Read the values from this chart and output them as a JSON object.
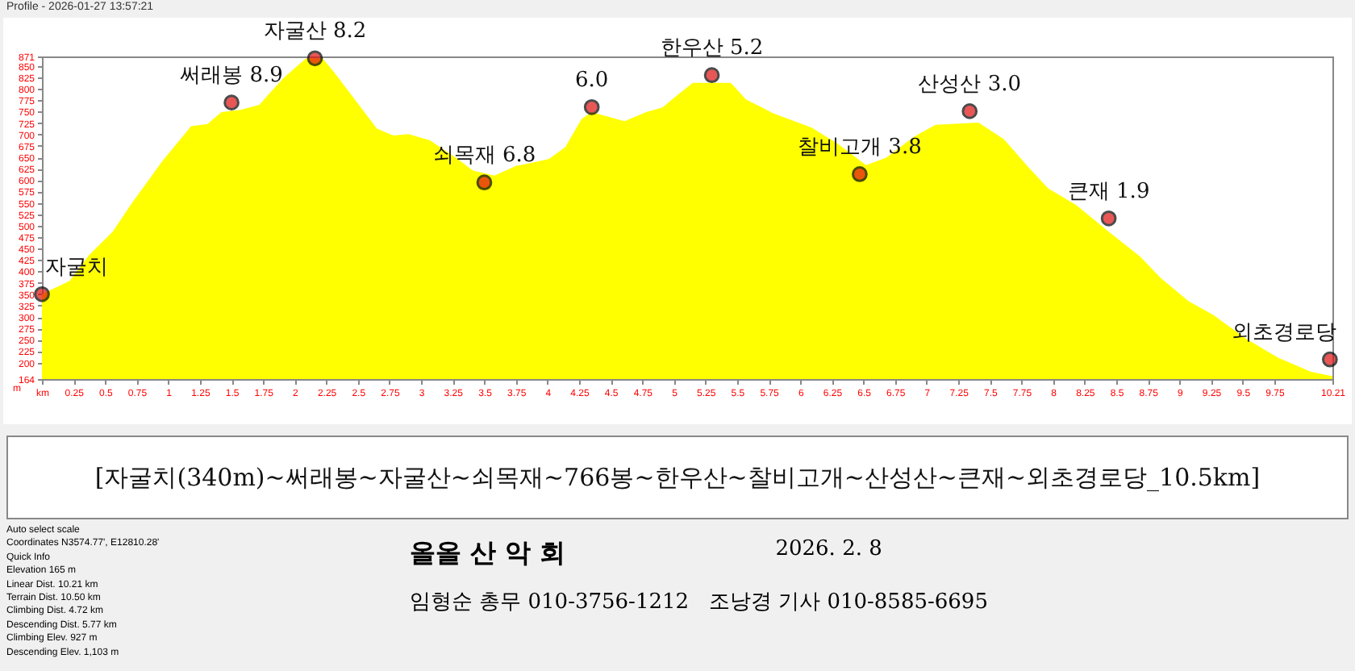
{
  "chart_data": {
    "type": "area",
    "ylabel": "m",
    "x": [
      0,
      0.22,
      0.37,
      0.56,
      0.71,
      0.95,
      1.18,
      1.31,
      1.42,
      1.57,
      1.72,
      1.8,
      1.92,
      2.09,
      2.22,
      2.31,
      2.48,
      2.65,
      2.78,
      2.9,
      3.07,
      3.29,
      3.41,
      3.58,
      3.75,
      3.84,
      4.01,
      4.14,
      4.27,
      4.35,
      4.61,
      4.78,
      4.91,
      5.03,
      5.15,
      5.45,
      5.57,
      5.79,
      6.09,
      6.3,
      6.52,
      6.68,
      6.9,
      7.07,
      7.41,
      7.61,
      7.79,
      7.96,
      8.18,
      8.43,
      8.69,
      8.85,
      9.07,
      9.27,
      9.53,
      9.78,
      10.04,
      10.21
    ],
    "series": [
      {
        "color": "#ffff00",
        "values": [
          350,
          379,
          435,
          487,
          549,
          641,
          718,
          723,
          749,
          754,
          765,
          790,
          826,
          867,
          867,
          837,
          775,
          713,
          698,
          701,
          687,
          646,
          621,
          610,
          631,
          636,
          646,
          672,
          734,
          749,
          729,
          749,
          759,
          787,
          813,
          813,
          777,
          746,
          715,
          679,
          633,
          649,
          695,
          721,
          726,
          690,
          633,
          582,
          546,
          489,
          432,
          386,
          335,
          304,
          252,
          211,
          180,
          170
        ]
      }
    ],
    "xlim": [
      0,
      10.21
    ],
    "xticks": [
      {
        "value": 0,
        "label": "km"
      },
      0.25,
      0.5,
      0.75,
      1,
      1.25,
      1.5,
      1.75,
      2,
      2.25,
      2.5,
      2.75,
      3,
      3.25,
      3.5,
      3.75,
      4,
      4.25,
      4.5,
      4.75,
      5,
      5.25,
      5.5,
      5.75,
      6,
      6.25,
      6.5,
      6.75,
      7,
      7.25,
      7.5,
      7.75,
      8,
      8.25,
      8.5,
      8.75,
      9,
      9.25,
      9.5,
      9.75,
      10.21
    ],
    "ylim": [
      164,
      871
    ],
    "yticks": [
      164,
      200,
      225,
      250,
      275,
      300,
      325,
      350,
      375,
      400,
      425,
      450,
      475,
      500,
      525,
      550,
      575,
      600,
      625,
      650,
      675,
      700,
      725,
      750,
      775,
      800,
      825,
      850,
      871
    ],
    "grid": false,
    "annotations": [
      {
        "text": "자굴치",
        "x": 0,
        "y": 350
      },
      {
        "text": "써래봉 8.9",
        "x": 1.5,
        "y": 770
      },
      {
        "text": "자굴산 8.2",
        "x": 2.16,
        "y": 867
      },
      {
        "text": "쇠목재 6.8",
        "x": 3.5,
        "y": 595
      },
      {
        "text": "6.0",
        "x": 4.35,
        "y": 760
      },
      {
        "text": "한우산 5.2",
        "x": 5.3,
        "y": 830
      },
      {
        "text": "찰비고개 3.8",
        "x": 6.47,
        "y": 613
      },
      {
        "text": "산성산 3.0",
        "x": 7.34,
        "y": 751
      },
      {
        "text": "큰재 1.9",
        "x": 8.44,
        "y": 516
      },
      {
        "text": "외초경로당",
        "x": 10.19,
        "y": 207
      },
      "Profile - 2026-01-27 13:57:21",
      "[자굴치(340m)~써래봉~자굴산~쇠목재~766봉~한우산~찰비고개~산성산~큰재~외초경로당_10.5km]",
      "올올 산 악 회",
      "2026. 2. 8",
      "임형순 총무 010-3756-1212   조낭경 기사 010-8585-6695",
      "Auto select scale",
      "Coordinates N3574.77', E12810.28'",
      "Quick Info",
      "Elevation 165 m",
      "Linear Dist. 10.21 km",
      "Terrain Dist. 10.50 km",
      "Climbing Dist. 4.72 km",
      "Descending Dist. 5.77 km",
      "Climbing Elev. 927 m",
      "Descending Elev. 1,103 m"
    ]
  }
}
